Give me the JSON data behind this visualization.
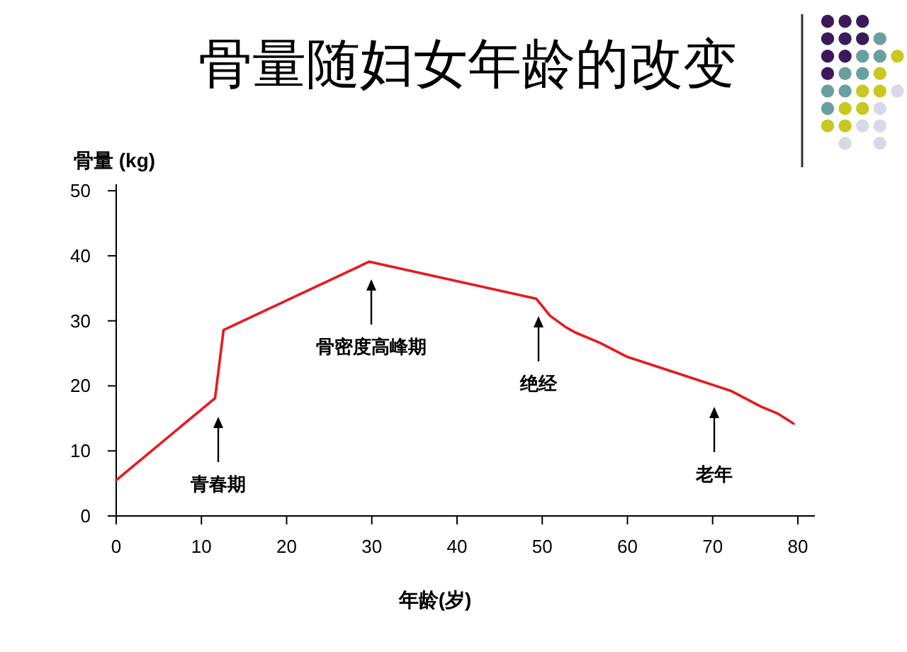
{
  "chart_data": {
    "type": "line",
    "title": "骨量随妇女年龄的改变",
    "ylabel": "骨量 (kg)",
    "xlabel": "年龄(岁)",
    "xlim": [
      0,
      82
    ],
    "xticks": [
      0,
      10,
      20,
      30,
      40,
      50,
      60,
      70,
      80
    ],
    "ylim": [
      0,
      51
    ],
    "yticks": [
      0,
      10,
      20,
      30,
      40,
      50
    ],
    "x": [
      0,
      11.6,
      12.6,
      29.7,
      49.3,
      50.9,
      52.8,
      53.9,
      56.8,
      59.9,
      66.2,
      72.2,
      75.7,
      77.7,
      79.5
    ],
    "series": [
      {
        "color": "#e8191e",
        "values": [
          5.5,
          18.1,
          28.6,
          39.1,
          33.4,
          30.8,
          29.0,
          28.2,
          26.6,
          24.5,
          21.8,
          19.2,
          16.8,
          15.7,
          14.2
        ]
      }
    ],
    "annotations": [
      "青春期",
      "骨密度高峰期",
      "绝经",
      "老年"
    ]
  }
}
